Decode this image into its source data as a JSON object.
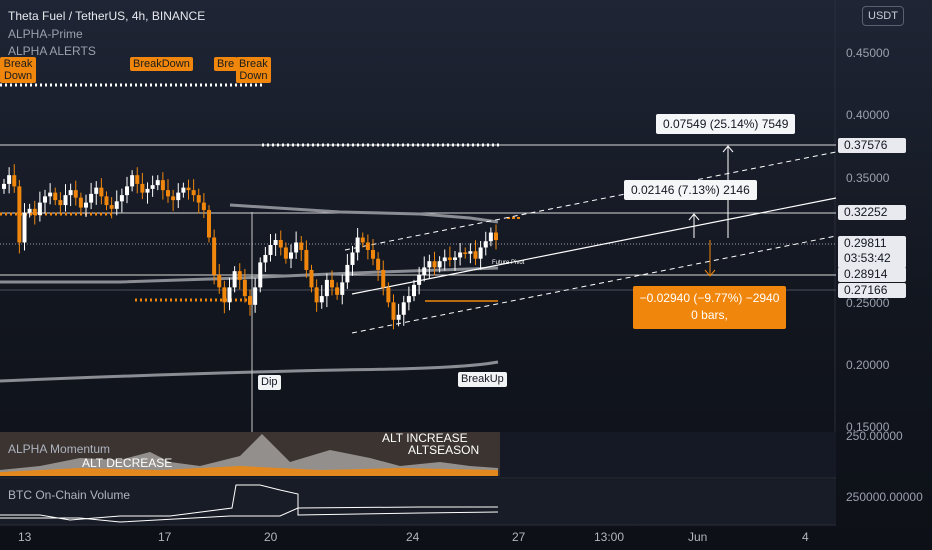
{
  "header": {
    "title": "Theta Fuel / TetherUS, 4h, BINANCE",
    "indicators": [
      "ALPHA-Prime",
      "ALPHA ALERTS"
    ]
  },
  "currency_button": "USDT",
  "price_axis": {
    "ticks": [
      "0.45000",
      "0.40000",
      "0.35000",
      "0.25000",
      "0.20000",
      "0.15000"
    ],
    "tags": [
      "0.37576",
      "0.32252",
      "0.28914",
      "0.27166"
    ],
    "current_price": "0.29811",
    "countdown": "03:53:42"
  },
  "osc_axis": "250.00000",
  "vol_axis": "250000.00000",
  "x_axis": [
    "13",
    "17",
    "20",
    "24",
    "27",
    "13:00",
    "Jun",
    "4"
  ],
  "signals": {
    "breakdown_1": "Break\nDown",
    "breakdown_2": "BreakDown",
    "breakdown_3a": "Bre",
    "breakdown_3b": "Break\nDown",
    "dip": "Dip",
    "breakup": "BreakUp",
    "future_pivot": "Future Pivot"
  },
  "measure_boxes": {
    "upper": "0.07549 (25.14%) 7549",
    "middle": "0.02146 (7.13%) 2146",
    "lower_line1": "−0.02940 (−9.77%) −2940",
    "lower_line2": "0 bars,"
  },
  "panels": {
    "momentum_title": "ALPHA Momentum",
    "alt_decrease": "ALT DECREASE",
    "alt_increase": "ALT INCREASE",
    "altseason": "ALTSEASON",
    "volume_title": "BTC On-Chain Volume"
  },
  "colors": {
    "orange": "#f0870c",
    "white": "#e6e8ee",
    "up": "#ffffff",
    "down": "#f0870c"
  },
  "chart_data": {
    "type": "candlestick",
    "symbol": "THETA FUEL / USDT",
    "timeframe": "4h",
    "exchange": "BINANCE",
    "ylim": [
      0.15,
      0.47
    ],
    "x_labels": [
      "13",
      "17",
      "20",
      "24",
      "27",
      "13:00",
      "Jun",
      "4"
    ],
    "levels": [
      0.37576,
      0.32252,
      0.29811,
      0.28914,
      0.27166
    ],
    "closes": [
      0.345,
      0.352,
      0.343,
      0.298,
      0.322,
      0.325,
      0.32,
      0.33,
      0.335,
      0.338,
      0.332,
      0.328,
      0.336,
      0.34,
      0.334,
      0.326,
      0.33,
      0.337,
      0.342,
      0.335,
      0.328,
      0.325,
      0.331,
      0.336,
      0.343,
      0.352,
      0.345,
      0.338,
      0.341,
      0.344,
      0.348,
      0.34,
      0.335,
      0.332,
      0.338,
      0.342,
      0.34,
      0.336,
      0.33,
      0.324,
      0.302,
      0.272,
      0.262,
      0.25,
      0.262,
      0.275,
      0.268,
      0.255,
      0.248,
      0.262,
      0.282,
      0.288,
      0.296,
      0.3,
      0.294,
      0.285,
      0.29,
      0.298,
      0.292,
      0.276,
      0.262,
      0.25,
      0.255,
      0.268,
      0.262,
      0.256,
      0.266,
      0.28,
      0.29,
      0.302,
      0.298,
      0.292,
      0.285,
      0.276,
      0.262,
      0.25,
      0.236,
      0.24,
      0.25,
      0.255,
      0.264,
      0.272,
      0.278,
      0.283,
      0.278,
      0.283,
      0.286,
      0.284,
      0.286,
      0.29,
      0.289,
      0.291,
      0.285,
      0.294,
      0.299,
      0.306,
      0.3
    ],
    "measurements": [
      {
        "delta": "0.07549",
        "percent": "25.14%",
        "ticks": "7549"
      },
      {
        "delta": "0.02146",
        "percent": "7.13%",
        "ticks": "2146"
      },
      {
        "delta": "-0.02940",
        "percent": "-9.77%",
        "ticks": "-2940",
        "bars": "0 bars,"
      }
    ],
    "osc_level": 250.0,
    "volume_level": 250000.0
  }
}
